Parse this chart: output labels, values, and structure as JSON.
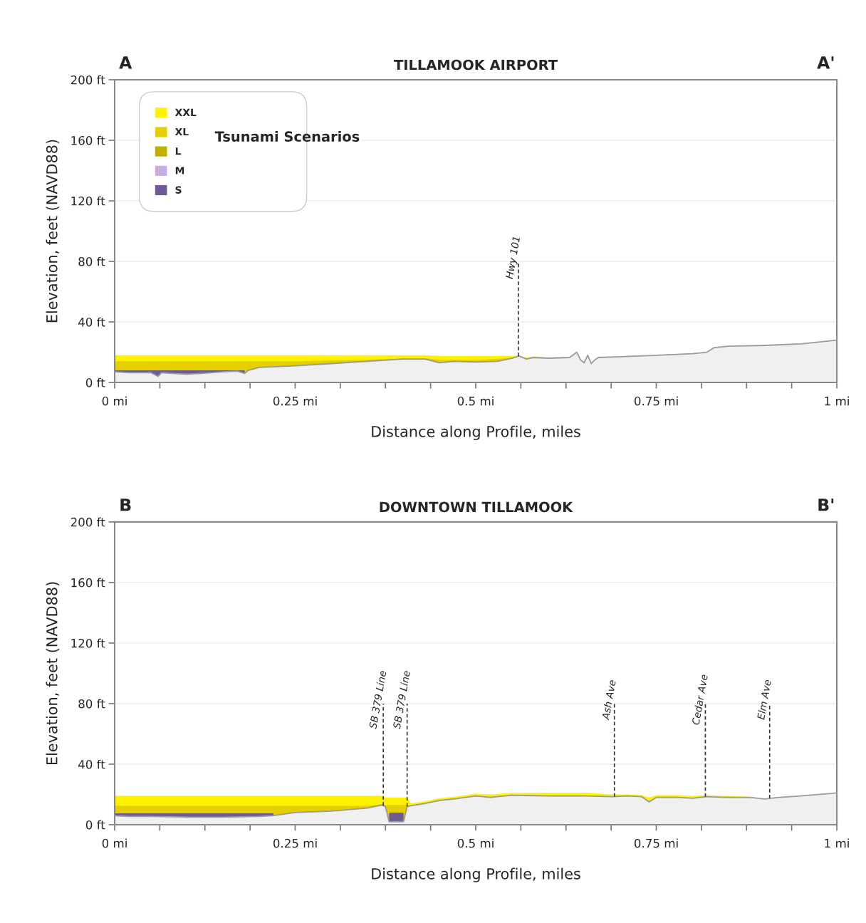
{
  "chart_data": [
    {
      "type": "area",
      "title": "TILLAMOOK AIRPORT",
      "xlabel": "Distance along Profile, miles",
      "ylabel": "Elevation, feet (NAVD88)",
      "legend_title": "Tsunami Scenarios",
      "annotations": [
        "A",
        "A'"
      ],
      "x": [
        0,
        0.02,
        0.05,
        0.06,
        0.065,
        0.08,
        0.1,
        0.12,
        0.15,
        0.17,
        0.18,
        0.185,
        0.2,
        0.25,
        0.3,
        0.35,
        0.4,
        0.43,
        0.45,
        0.47,
        0.5,
        0.53,
        0.55,
        0.56,
        0.57,
        0.58,
        0.6,
        0.63,
        0.64,
        0.645,
        0.65,
        0.655,
        0.66,
        0.665,
        0.67,
        0.7,
        0.75,
        0.8,
        0.82,
        0.83,
        0.85,
        0.9,
        0.95,
        1.0
      ],
      "series": [
        {
          "color": "#9a9a9a",
          "values": [
            7,
            6.5,
            6.5,
            4,
            6.5,
            6,
            5.5,
            6,
            7,
            7.5,
            6,
            8,
            10,
            11,
            12.5,
            14,
            15.5,
            15.5,
            13,
            14,
            13.5,
            14,
            16,
            17.5,
            15.5,
            16.5,
            16,
            16.5,
            20,
            15,
            13,
            18,
            12.5,
            15,
            16.5,
            17,
            18,
            19,
            20,
            23,
            24,
            24.5,
            25.5,
            28
          ]
        },
        {
          "name": "XXL",
          "color": "#fff200",
          "values": [
            18,
            18,
            18,
            18,
            18,
            18,
            18,
            18,
            18,
            18,
            18,
            18,
            18,
            18,
            18,
            18,
            18,
            18,
            17.5,
            17.5,
            17.5,
            17.5,
            17.5,
            17.8,
            16.5,
            17.2,
            16.8,
            17,
            null,
            null,
            null,
            null,
            null,
            null,
            null,
            null,
            null,
            null,
            null,
            null,
            null,
            null,
            null,
            null
          ]
        },
        {
          "name": "XL",
          "color": "#e6cf00",
          "values": [
            14,
            14,
            14,
            14,
            14,
            14,
            14,
            14,
            14,
            14,
            14,
            14,
            14,
            14,
            14.5,
            15,
            16,
            16,
            15,
            15,
            15,
            15.5,
            16.5,
            null,
            null,
            null,
            null,
            null,
            null,
            null,
            null,
            null,
            null,
            null,
            null,
            null,
            null,
            null,
            null,
            null,
            null,
            null,
            null,
            null
          ]
        },
        {
          "name": "L",
          "color": "#c2b000",
          "values": [
            null,
            null,
            null,
            null,
            null,
            null,
            null,
            null,
            null,
            null,
            null,
            null,
            null,
            null,
            null,
            null,
            null,
            null,
            null,
            null,
            null,
            null,
            null,
            null,
            null,
            null,
            null,
            null,
            null,
            null,
            null,
            null,
            null,
            null,
            null,
            null,
            null,
            null,
            null,
            null,
            null,
            null,
            null,
            null
          ]
        },
        {
          "name": "M",
          "color": "#c8aee0",
          "values": [
            null,
            null,
            null,
            null,
            null,
            null,
            null,
            null,
            null,
            null,
            null,
            null,
            null,
            null,
            null,
            null,
            null,
            null,
            null,
            null,
            null,
            null,
            null,
            null,
            null,
            null,
            null,
            null,
            null,
            null,
            null,
            null,
            null,
            null,
            null,
            null,
            null,
            null,
            null,
            null,
            null,
            null,
            null,
            null
          ]
        },
        {
          "name": "S",
          "color": "#6d5a96",
          "values": [
            8,
            8,
            8,
            8,
            8,
            8,
            8,
            8,
            8,
            8,
            8,
            null,
            null,
            null,
            null,
            null,
            null,
            null,
            null,
            null,
            null,
            null,
            null,
            null,
            null,
            null,
            null,
            null,
            null,
            null,
            null,
            null,
            null,
            null,
            null,
            null,
            null,
            null,
            null,
            null,
            null,
            null,
            null,
            null
          ]
        }
      ],
      "ref_lines": [
        {
          "axis": "x",
          "value": 0.559,
          "label": "Hwy 101",
          "color": "#333333",
          "line_style": "dashed"
        }
      ],
      "xlim": [
        0,
        1
      ],
      "ylim": [
        0,
        200
      ],
      "xticks": [
        {
          "value": 0,
          "label": "0 mi"
        },
        {
          "value": 0.0625,
          "label": null
        },
        {
          "value": 0.125,
          "label": null
        },
        {
          "value": 0.1875,
          "label": null
        },
        {
          "value": 0.25,
          "label": "0.25 mi"
        },
        {
          "value": 0.3125,
          "label": null
        },
        {
          "value": 0.375,
          "label": null
        },
        {
          "value": 0.4375,
          "label": null
        },
        {
          "value": 0.5,
          "label": "0.5 mi"
        },
        {
          "value": 0.5625,
          "label": null
        },
        {
          "value": 0.625,
          "label": null
        },
        {
          "value": 0.6875,
          "label": null
        },
        {
          "value": 0.75,
          "label": "0.75 mi"
        },
        {
          "value": 0.8125,
          "label": null
        },
        {
          "value": 0.875,
          "label": null
        },
        {
          "value": 0.9375,
          "label": null
        },
        {
          "value": 1,
          "label": "1 mi"
        }
      ],
      "yticks": [
        {
          "value": 0,
          "label": "0 ft"
        },
        {
          "value": 40,
          "label": "40 ft"
        },
        {
          "value": 80,
          "label": "80 ft"
        },
        {
          "value": 120,
          "label": "120 ft"
        },
        {
          "value": 160,
          "label": "160 ft"
        },
        {
          "value": 200,
          "label": "200 ft"
        }
      ],
      "grid": "y",
      "legend": "top left"
    },
    {
      "type": "area",
      "title": "DOWNTOWN TILLAMOOK",
      "xlabel": "Distance along Profile, miles",
      "ylabel": "Elevation, feet (NAVD88)",
      "annotations": [
        "B",
        "B'"
      ],
      "x": [
        0,
        0.02,
        0.05,
        0.1,
        0.15,
        0.2,
        0.22,
        0.25,
        0.3,
        0.35,
        0.37,
        0.375,
        0.38,
        0.4,
        0.405,
        0.41,
        0.43,
        0.45,
        0.47,
        0.5,
        0.52,
        0.55,
        0.6,
        0.65,
        0.69,
        0.71,
        0.73,
        0.74,
        0.75,
        0.78,
        0.8,
        0.82,
        0.85,
        0.88,
        0.9,
        0.92,
        0.95,
        1.0
      ],
      "series": [
        {
          "color": "#9a9a9a",
          "values": [
            6,
            5.5,
            5.5,
            5,
            5,
            5.5,
            6,
            8,
            9,
            11,
            13,
            12,
            2,
            2,
            12,
            12.5,
            14,
            16,
            17,
            19,
            18,
            19.5,
            19,
            19,
            18.5,
            19,
            18.5,
            15,
            18,
            18,
            17.5,
            18.5,
            18,
            18,
            17,
            18,
            19,
            21
          ]
        },
        {
          "color": "#fff200",
          "values": [
            19,
            19,
            19,
            19,
            19,
            19,
            19,
            19,
            19,
            19,
            19,
            18,
            18,
            18,
            18,
            14,
            15.5,
            17.5,
            18.5,
            20.5,
            20,
            21,
            21,
            21,
            20,
            20,
            19.5,
            18,
            19.5,
            19.5,
            19,
            19.5,
            19,
            18.5,
            null,
            null,
            null,
            null
          ]
        },
        {
          "color": "#e6cf00",
          "values": [
            12.5,
            12.5,
            12.5,
            12.5,
            12.5,
            12.5,
            12.5,
            12.5,
            12.5,
            12.5,
            13.5,
            13,
            13,
            13,
            13,
            null,
            null,
            null,
            null,
            null,
            null,
            null,
            null,
            null,
            null,
            null,
            null,
            null,
            null,
            null,
            null,
            null,
            null,
            null,
            null,
            null,
            null,
            null
          ]
        },
        {
          "color": "#6d5a96",
          "values": [
            7.5,
            7.5,
            7.5,
            7.5,
            7.5,
            7.5,
            7.5,
            null,
            null,
            null,
            null,
            null,
            8,
            8,
            null,
            null,
            null,
            null,
            null,
            null,
            null,
            null,
            null,
            null,
            null,
            null,
            null,
            null,
            null,
            null,
            null,
            null,
            null,
            null,
            null,
            null,
            null,
            null
          ]
        }
      ],
      "ref_lines": [
        {
          "axis": "x",
          "value": 0.372,
          "label": "SB 379 Line",
          "color": "#333333",
          "line_style": "dashed"
        },
        {
          "axis": "x",
          "value": 0.405,
          "label": "SB 379 Line",
          "color": "#333333",
          "line_style": "dashed"
        },
        {
          "axis": "x",
          "value": 0.692,
          "label": "Ash Ave",
          "color": "#333333",
          "line_style": "dashed"
        },
        {
          "axis": "x",
          "value": 0.818,
          "label": "Cedar Ave",
          "color": "#333333",
          "line_style": "dashed"
        },
        {
          "axis": "x",
          "value": 0.907,
          "label": "Elm Ave",
          "color": "#333333",
          "line_style": "dashed"
        }
      ],
      "xlim": [
        0,
        1
      ],
      "ylim": [
        0,
        200
      ],
      "xticks": [
        {
          "value": 0,
          "label": "0 mi"
        },
        {
          "value": 0.0625,
          "label": null
        },
        {
          "value": 0.125,
          "label": null
        },
        {
          "value": 0.1875,
          "label": null
        },
        {
          "value": 0.25,
          "label": "0.25 mi"
        },
        {
          "value": 0.3125,
          "label": null
        },
        {
          "value": 0.375,
          "label": null
        },
        {
          "value": 0.4375,
          "label": null
        },
        {
          "value": 0.5,
          "label": "0.5 mi"
        },
        {
          "value": 0.5625,
          "label": null
        },
        {
          "value": 0.625,
          "label": null
        },
        {
          "value": 0.6875,
          "label": null
        },
        {
          "value": 0.75,
          "label": "0.75 mi"
        },
        {
          "value": 0.8125,
          "label": null
        },
        {
          "value": 0.875,
          "label": null
        },
        {
          "value": 0.9375,
          "label": null
        },
        {
          "value": 1,
          "label": "1 mi"
        }
      ],
      "yticks": [
        {
          "value": 0,
          "label": "0 ft"
        },
        {
          "value": 40,
          "label": "40 ft"
        },
        {
          "value": 80,
          "label": "80 ft"
        },
        {
          "value": 120,
          "label": "120 ft"
        },
        {
          "value": 160,
          "label": "160 ft"
        },
        {
          "value": 200,
          "label": "200 ft"
        }
      ],
      "grid": "y",
      "legend": false
    }
  ]
}
